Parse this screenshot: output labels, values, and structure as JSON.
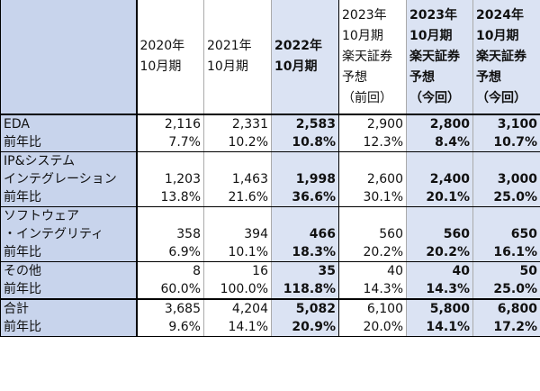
{
  "header": {
    "c1": [
      "2020年",
      "10月期"
    ],
    "c2": [
      "2021年",
      "10月期"
    ],
    "c3": [
      "2022年",
      "10月期"
    ],
    "c4": [
      "2023年",
      "10月期",
      "楽天証券",
      "予想",
      "（前回）"
    ],
    "c5": [
      "2023年",
      "10月期",
      "楽天証券",
      "予想",
      "（今回）"
    ],
    "c6": [
      "2024年",
      "10月期",
      "楽天証券",
      "予想",
      "（今回）"
    ]
  },
  "groups": [
    {
      "name_lines": [
        "EDA"
      ],
      "values": [
        "2,116",
        "2,331",
        "2,583",
        "2,900",
        "2,800",
        "3,100"
      ],
      "yoy_label": "前年比",
      "yoy": [
        "7.7%",
        "10.2%",
        "10.8%",
        "12.3%",
        "8.4%",
        "10.7%"
      ]
    },
    {
      "name_lines": [
        "IP&システム",
        "インテグレーション"
      ],
      "values": [
        "1,203",
        "1,463",
        "1,998",
        "2,600",
        "2,400",
        "3,000"
      ],
      "yoy_label": "前年比",
      "yoy": [
        "13.8%",
        "21.6%",
        "36.6%",
        "30.1%",
        "20.1%",
        "25.0%"
      ]
    },
    {
      "name_lines": [
        "ソフトウェア",
        "・インテグリティ"
      ],
      "values": [
        "358",
        "394",
        "466",
        "560",
        "560",
        "650"
      ],
      "yoy_label": "前年比",
      "yoy": [
        "6.9%",
        "10.1%",
        "18.3%",
        "20.2%",
        "20.2%",
        "16.1%"
      ]
    },
    {
      "name_lines": [
        "その他"
      ],
      "values": [
        "8",
        "16",
        "35",
        "40",
        "40",
        "50"
      ],
      "yoy_label": "前年比",
      "yoy": [
        "60.0%",
        "100.0%",
        "118.8%",
        "14.3%",
        "14.3%",
        "25.0%"
      ]
    },
    {
      "name_lines": [
        "合計"
      ],
      "values": [
        "3,685",
        "4,204",
        "5,082",
        "6,100",
        "5,800",
        "6,800"
      ],
      "yoy_label": "前年比",
      "yoy": [
        "9.6%",
        "14.1%",
        "20.9%",
        "20.0%",
        "14.1%",
        "17.2%"
      ]
    }
  ]
}
